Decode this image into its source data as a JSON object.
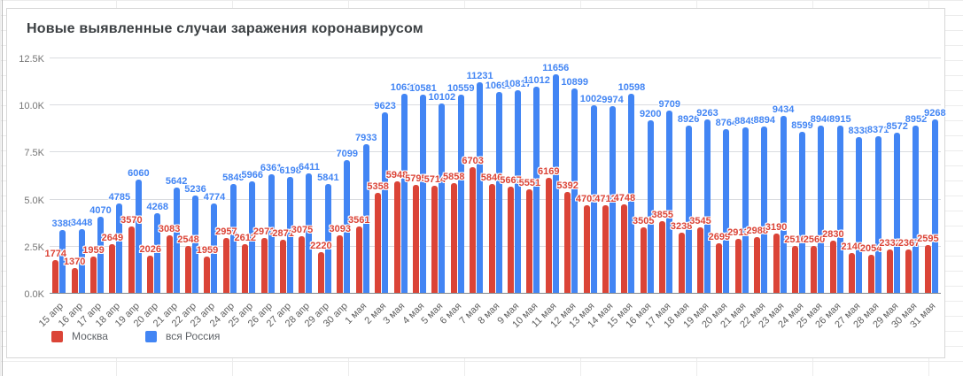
{
  "chart_data": {
    "type": "bar",
    "title": "Новые выявленные случаи заражения коронавирусом",
    "categories": [
      "15 апр",
      "16 апр",
      "17 апр",
      "18 апр",
      "19 апр",
      "20 апр",
      "21 апр",
      "22 апр",
      "23 апр",
      "24 апр",
      "25 апр",
      "26 апр",
      "27 апр",
      "28 апр",
      "29 апр",
      "30 апр",
      "1 мая",
      "2 мая",
      "3 мая",
      "4 мая",
      "5 мая",
      "6 мая",
      "7 мая",
      "8 мая",
      "9 мая",
      "10 мая",
      "11 мая",
      "12 мая",
      "13 мая",
      "14 мая",
      "15 мая",
      "16 мая",
      "17 мая",
      "18 мая",
      "19 мая",
      "20 мая",
      "21 мая",
      "22 мая",
      "23 мая",
      "24 мая",
      "25 мая",
      "26 мая",
      "27 мая",
      "28 мая",
      "29 мая",
      "30 мая",
      "31 мая"
    ],
    "series": [
      {
        "name": "Москва",
        "color": "#db4437",
        "values": [
          1774,
          1370,
          1959,
          2649,
          3570,
          2026,
          3083,
          2548,
          1959,
          2957,
          2612,
          2971,
          2871,
          3075,
          2220,
          3093,
          3561,
          5358,
          5948,
          5795,
          5714,
          5858,
          6703,
          5846,
          5667,
          5551,
          6169,
          5392,
          4703,
          4712,
          4748,
          3505,
          3855,
          3238,
          3545,
          2699,
          2913,
          2988,
          3190,
          2516,
          2560,
          2830,
          2140,
          2054,
          2332,
          2367,
          2595
        ]
      },
      {
        "name": "вся Россия",
        "color": "#4285f4",
        "values": [
          3388,
          3448,
          4070,
          4785,
          6060,
          4268,
          5642,
          5236,
          4774,
          5849,
          5966,
          6361,
          6198,
          6411,
          5841,
          7099,
          7933,
          9623,
          10633,
          10581,
          10102,
          10559,
          11231,
          10699,
          10817,
          11012,
          11656,
          10899,
          10028,
          9974,
          10598,
          9200,
          9709,
          8926,
          9263,
          8764,
          8849,
          8894,
          9434,
          8599,
          8946,
          8915,
          8338,
          8371,
          8572,
          8952,
          9268
        ]
      }
    ],
    "ylim": [
      0,
      12500
    ],
    "yticks": [
      {
        "label": "0.0K",
        "value": 0
      },
      {
        "label": "2.5K",
        "value": 2500
      },
      {
        "label": "5.0K",
        "value": 5000
      },
      {
        "label": "7.5K",
        "value": 7500
      },
      {
        "label": "10.0K",
        "value": 10000
      },
      {
        "label": "12.5K",
        "value": 12500
      }
    ],
    "grid": true,
    "legend_position": "bottom-left",
    "bar_label_colors": {
      "moscow": "#db4437",
      "russia": "#4285f4"
    }
  }
}
